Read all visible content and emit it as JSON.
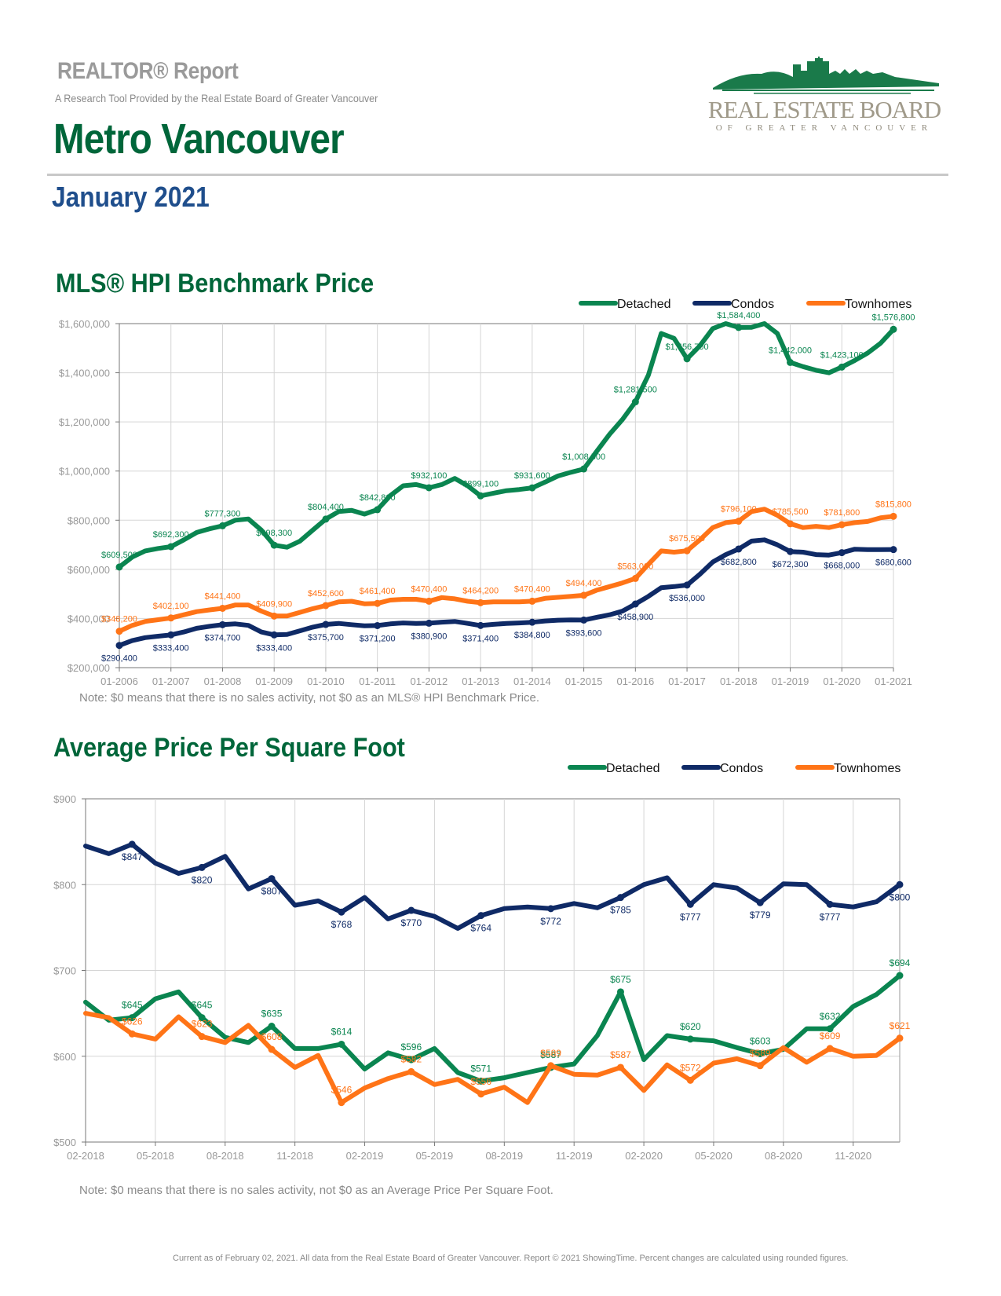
{
  "header": {
    "report_title": "REALTOR® Report",
    "subtitle": "A Research Tool Provided by the Real Estate Board of Greater Vancouver",
    "region": "Metro Vancouver",
    "month": "January 2021",
    "logo_main": "REAL ESTATE BOARD",
    "logo_sub": "OF GREATER VANCOUVER"
  },
  "colors": {
    "detached": "#0a8550",
    "condos": "#0f2a66",
    "townhomes": "#ff7417",
    "title_green": "#00663a",
    "month_blue": "#1f4e8c"
  },
  "sections": {
    "hpi_title": "MLS® HPI Benchmark Price",
    "hpi_note": "Note: $0 means that there is no sales activity, not $0 as an MLS® HPI Benchmark Price.",
    "ppsf_title": "Average Price Per Square Foot",
    "ppsf_note": "Note: $0 means that there is no sales activity, not $0 as an Average Price Per Square Foot."
  },
  "footer": "Current as of February 02, 2021. All data from the Real Estate Board of Greater Vancouver. Report © 2021 ShowingTime. Percent changes are calculated using rounded figures.",
  "chart_data": [
    {
      "type": "line",
      "title": "MLS® HPI Benchmark Price",
      "xlabel": "",
      "ylabel": "",
      "ylim": [
        200000,
        1600000
      ],
      "yticks": [
        200000,
        400000,
        600000,
        800000,
        1000000,
        1200000,
        1400000,
        1600000
      ],
      "ytick_labels": [
        "$200,000",
        "$400,000",
        "$600,000",
        "$800,000",
        "$1,000,000",
        "$1,200,000",
        "$1,400,000",
        "$1,600,000"
      ],
      "grid": true,
      "legend": "top-right",
      "categories": [
        "01-2006",
        "01-2007",
        "01-2008",
        "01-2009",
        "01-2010",
        "01-2011",
        "01-2012",
        "01-2013",
        "01-2014",
        "01-2015",
        "01-2016",
        "01-2017",
        "01-2018",
        "01-2019",
        "01-2020",
        "01-2021"
      ],
      "x_step_years": 0.25,
      "series": [
        {
          "name": "Detached",
          "color_key": "detached",
          "values": [
            609500,
            650000,
            675000,
            685000,
            692300,
            720000,
            750000,
            765000,
            777300,
            800000,
            805000,
            760000,
            698300,
            690000,
            715000,
            760000,
            804400,
            835000,
            840000,
            825000,
            842800,
            900000,
            940000,
            945000,
            932100,
            945000,
            970000,
            940000,
            899100,
            910000,
            920000,
            925000,
            931600,
            955000,
            980000,
            995000,
            1008500,
            1080000,
            1150000,
            1210000,
            1281500,
            1390000,
            1560000,
            1540000,
            1456700,
            1510000,
            1580000,
            1600000,
            1584400,
            1585000,
            1600000,
            1560000,
            1442000,
            1425000,
            1410000,
            1400000,
            1423100,
            1450000,
            1480000,
            1520000,
            1576800
          ],
          "labels": [
            {
              "i": 0,
              "text": "$609,500"
            },
            {
              "i": 4,
              "text": "$692,300"
            },
            {
              "i": 8,
              "text": "$777,300"
            },
            {
              "i": 12,
              "text": "$698,300"
            },
            {
              "i": 16,
              "text": "$804,400"
            },
            {
              "i": 20,
              "text": "$842,800"
            },
            {
              "i": 24,
              "text": "$932,100"
            },
            {
              "i": 28,
              "text": "$899,100"
            },
            {
              "i": 32,
              "text": "$931,600"
            },
            {
              "i": 36,
              "text": "$1,008,500"
            },
            {
              "i": 40,
              "text": "$1,281,500"
            },
            {
              "i": 44,
              "text": "$1,456,700"
            },
            {
              "i": 48,
              "text": "$1,584,400"
            },
            {
              "i": 52,
              "text": "$1,442,000"
            },
            {
              "i": 56,
              "text": "$1,423,100"
            },
            {
              "i": 60,
              "text": "$1,576,800"
            }
          ]
        },
        {
          "name": "Condos",
          "color_key": "condos",
          "values": [
            290400,
            310000,
            322000,
            328000,
            333400,
            345000,
            360000,
            368000,
            374700,
            378000,
            372000,
            345000,
            333400,
            335000,
            350000,
            365000,
            375700,
            380000,
            375000,
            370000,
            371200,
            378000,
            382000,
            380000,
            380900,
            385000,
            388000,
            380000,
            371400,
            376000,
            380000,
            382000,
            384800,
            390000,
            393000,
            394000,
            393600,
            405000,
            415000,
            430000,
            458900,
            490000,
            525000,
            530000,
            536000,
            580000,
            630000,
            660000,
            682800,
            715000,
            720000,
            700000,
            672300,
            670000,
            660000,
            658000,
            668000,
            682000,
            680000,
            680000,
            680600
          ],
          "labels": [
            {
              "i": 0,
              "text": "$290,400"
            },
            {
              "i": 4,
              "text": "$333,400"
            },
            {
              "i": 8,
              "text": "$374,700"
            },
            {
              "i": 12,
              "text": "$333,400"
            },
            {
              "i": 16,
              "text": "$375,700"
            },
            {
              "i": 20,
              "text": "$371,200"
            },
            {
              "i": 24,
              "text": "$380,900"
            },
            {
              "i": 28,
              "text": "$371,400"
            },
            {
              "i": 32,
              "text": "$384,800"
            },
            {
              "i": 36,
              "text": "$393,600"
            },
            {
              "i": 40,
              "text": "$458,900"
            },
            {
              "i": 44,
              "text": "$536,000"
            },
            {
              "i": 48,
              "text": "$682,800"
            },
            {
              "i": 52,
              "text": "$672,300"
            },
            {
              "i": 56,
              "text": "$668,000"
            },
            {
              "i": 60,
              "text": "$680,600"
            }
          ]
        },
        {
          "name": "Townhomes",
          "color_key": "townhomes",
          "values": [
            348200,
            372000,
            388000,
            395000,
            402100,
            415000,
            428000,
            435000,
            441400,
            455000,
            455000,
            430000,
            409900,
            410000,
            425000,
            440000,
            452600,
            468000,
            470000,
            460000,
            461400,
            475000,
            478000,
            478000,
            470400,
            485000,
            480000,
            470000,
            464200,
            468000,
            468000,
            468000,
            470400,
            482000,
            486000,
            490000,
            494400,
            515000,
            530000,
            545000,
            563000,
            620000,
            675000,
            670000,
            675500,
            720000,
            770000,
            790000,
            796100,
            835000,
            845000,
            820000,
            785500,
            770000,
            775000,
            770000,
            781800,
            790000,
            795000,
            810000,
            815800
          ],
          "labels": [
            {
              "i": 0,
              "text": "$348,200"
            },
            {
              "i": 4,
              "text": "$402,100"
            },
            {
              "i": 8,
              "text": "$441,400"
            },
            {
              "i": 12,
              "text": "$409,900"
            },
            {
              "i": 16,
              "text": "$452,600"
            },
            {
              "i": 20,
              "text": "$461,400"
            },
            {
              "i": 24,
              "text": "$470,400"
            },
            {
              "i": 28,
              "text": "$464,200"
            },
            {
              "i": 32,
              "text": "$470,400"
            },
            {
              "i": 36,
              "text": "$494,400"
            },
            {
              "i": 40,
              "text": "$563,000"
            },
            {
              "i": 44,
              "text": "$675,500"
            },
            {
              "i": 48,
              "text": "$796,100"
            },
            {
              "i": 52,
              "text": "$785,500"
            },
            {
              "i": 56,
              "text": "$781,800"
            },
            {
              "i": 60,
              "text": "$815,800"
            }
          ]
        }
      ]
    },
    {
      "type": "line",
      "title": "Average Price Per Square Foot",
      "xlabel": "",
      "ylabel": "",
      "ylim": [
        500,
        900
      ],
      "yticks": [
        500,
        600,
        700,
        800,
        900
      ],
      "ytick_labels": [
        "$500",
        "$600",
        "$700",
        "$800",
        "$900"
      ],
      "grid": true,
      "legend": "top-right",
      "categories": [
        "02-2018",
        "03-2018",
        "04-2018",
        "05-2018",
        "06-2018",
        "07-2018",
        "08-2018",
        "09-2018",
        "10-2018",
        "11-2018",
        "12-2018",
        "01-2019",
        "02-2019",
        "03-2019",
        "04-2019",
        "05-2019",
        "06-2019",
        "07-2019",
        "08-2019",
        "09-2019",
        "10-2019",
        "11-2019",
        "12-2019",
        "01-2020",
        "02-2020",
        "03-2020",
        "04-2020",
        "05-2020",
        "06-2020",
        "07-2020",
        "08-2020",
        "09-2020",
        "10-2020",
        "11-2020",
        "12-2020",
        "01-2021"
      ],
      "tick_labels": [
        "02-2018",
        "05-2018",
        "08-2018",
        "11-2018",
        "02-2019",
        "05-2019",
        "08-2019",
        "11-2019",
        "02-2020",
        "05-2020",
        "08-2020",
        "11-2020"
      ],
      "series": [
        {
          "name": "Detached",
          "color_key": "detached",
          "values": [
            663,
            642,
            645,
            667,
            675,
            645,
            622,
            616,
            635,
            609,
            609,
            614,
            585,
            604,
            596,
            609,
            581,
            571,
            575,
            581,
            587,
            591,
            624,
            675,
            596,
            624,
            620,
            618,
            610,
            603,
            608,
            632,
            632,
            658,
            672,
            694
          ],
          "labels": [
            {
              "i": 2,
              "text": "$645"
            },
            {
              "i": 5,
              "text": "$645"
            },
            {
              "i": 8,
              "text": "$635"
            },
            {
              "i": 11,
              "text": "$614"
            },
            {
              "i": 14,
              "text": "$596"
            },
            {
              "i": 17,
              "text": "$571"
            },
            {
              "i": 20,
              "text": "$587"
            },
            {
              "i": 23,
              "text": "$675"
            },
            {
              "i": 26,
              "text": "$620"
            },
            {
              "i": 29,
              "text": "$603"
            },
            {
              "i": 32,
              "text": "$632"
            },
            {
              "i": 35,
              "text": "$694"
            }
          ]
        },
        {
          "name": "Condos",
          "color_key": "condos",
          "values": [
            845,
            836,
            847,
            825,
            813,
            820,
            833,
            795,
            807,
            776,
            781,
            768,
            785,
            760,
            770,
            763,
            749,
            764,
            772,
            774,
            772,
            778,
            773,
            785,
            800,
            808,
            777,
            800,
            796,
            779,
            801,
            800,
            777,
            774,
            780,
            800
          ],
          "labels": [
            {
              "i": 2,
              "text": "$847"
            },
            {
              "i": 5,
              "text": "$820"
            },
            {
              "i": 8,
              "text": "$807"
            },
            {
              "i": 11,
              "text": "$768"
            },
            {
              "i": 14,
              "text": "$770"
            },
            {
              "i": 17,
              "text": "$764"
            },
            {
              "i": 20,
              "text": "$772"
            },
            {
              "i": 23,
              "text": "$785"
            },
            {
              "i": 26,
              "text": "$777"
            },
            {
              "i": 29,
              "text": "$779"
            },
            {
              "i": 32,
              "text": "$777"
            },
            {
              "i": 35,
              "text": "$800"
            }
          ]
        },
        {
          "name": "Townhomes",
          "color_key": "townhomes",
          "values": [
            650,
            645,
            626,
            620,
            646,
            623,
            616,
            636,
            608,
            587,
            601,
            546,
            563,
            574,
            582,
            567,
            573,
            556,
            564,
            546,
            589,
            579,
            578,
            587,
            560,
            590,
            572,
            592,
            597,
            589,
            610,
            593,
            609,
            600,
            601,
            621
          ],
          "labels": [
            {
              "i": 2,
              "text": "$626"
            },
            {
              "i": 5,
              "text": "$623"
            },
            {
              "i": 8,
              "text": "$608"
            },
            {
              "i": 11,
              "text": "$546"
            },
            {
              "i": 14,
              "text": "$582"
            },
            {
              "i": 17,
              "text": "$556"
            },
            {
              "i": 20,
              "text": "$589"
            },
            {
              "i": 23,
              "text": "$587"
            },
            {
              "i": 26,
              "text": "$572"
            },
            {
              "i": 29,
              "text": "$589"
            },
            {
              "i": 32,
              "text": "$609"
            },
            {
              "i": 35,
              "text": "$621"
            }
          ]
        }
      ]
    }
  ]
}
